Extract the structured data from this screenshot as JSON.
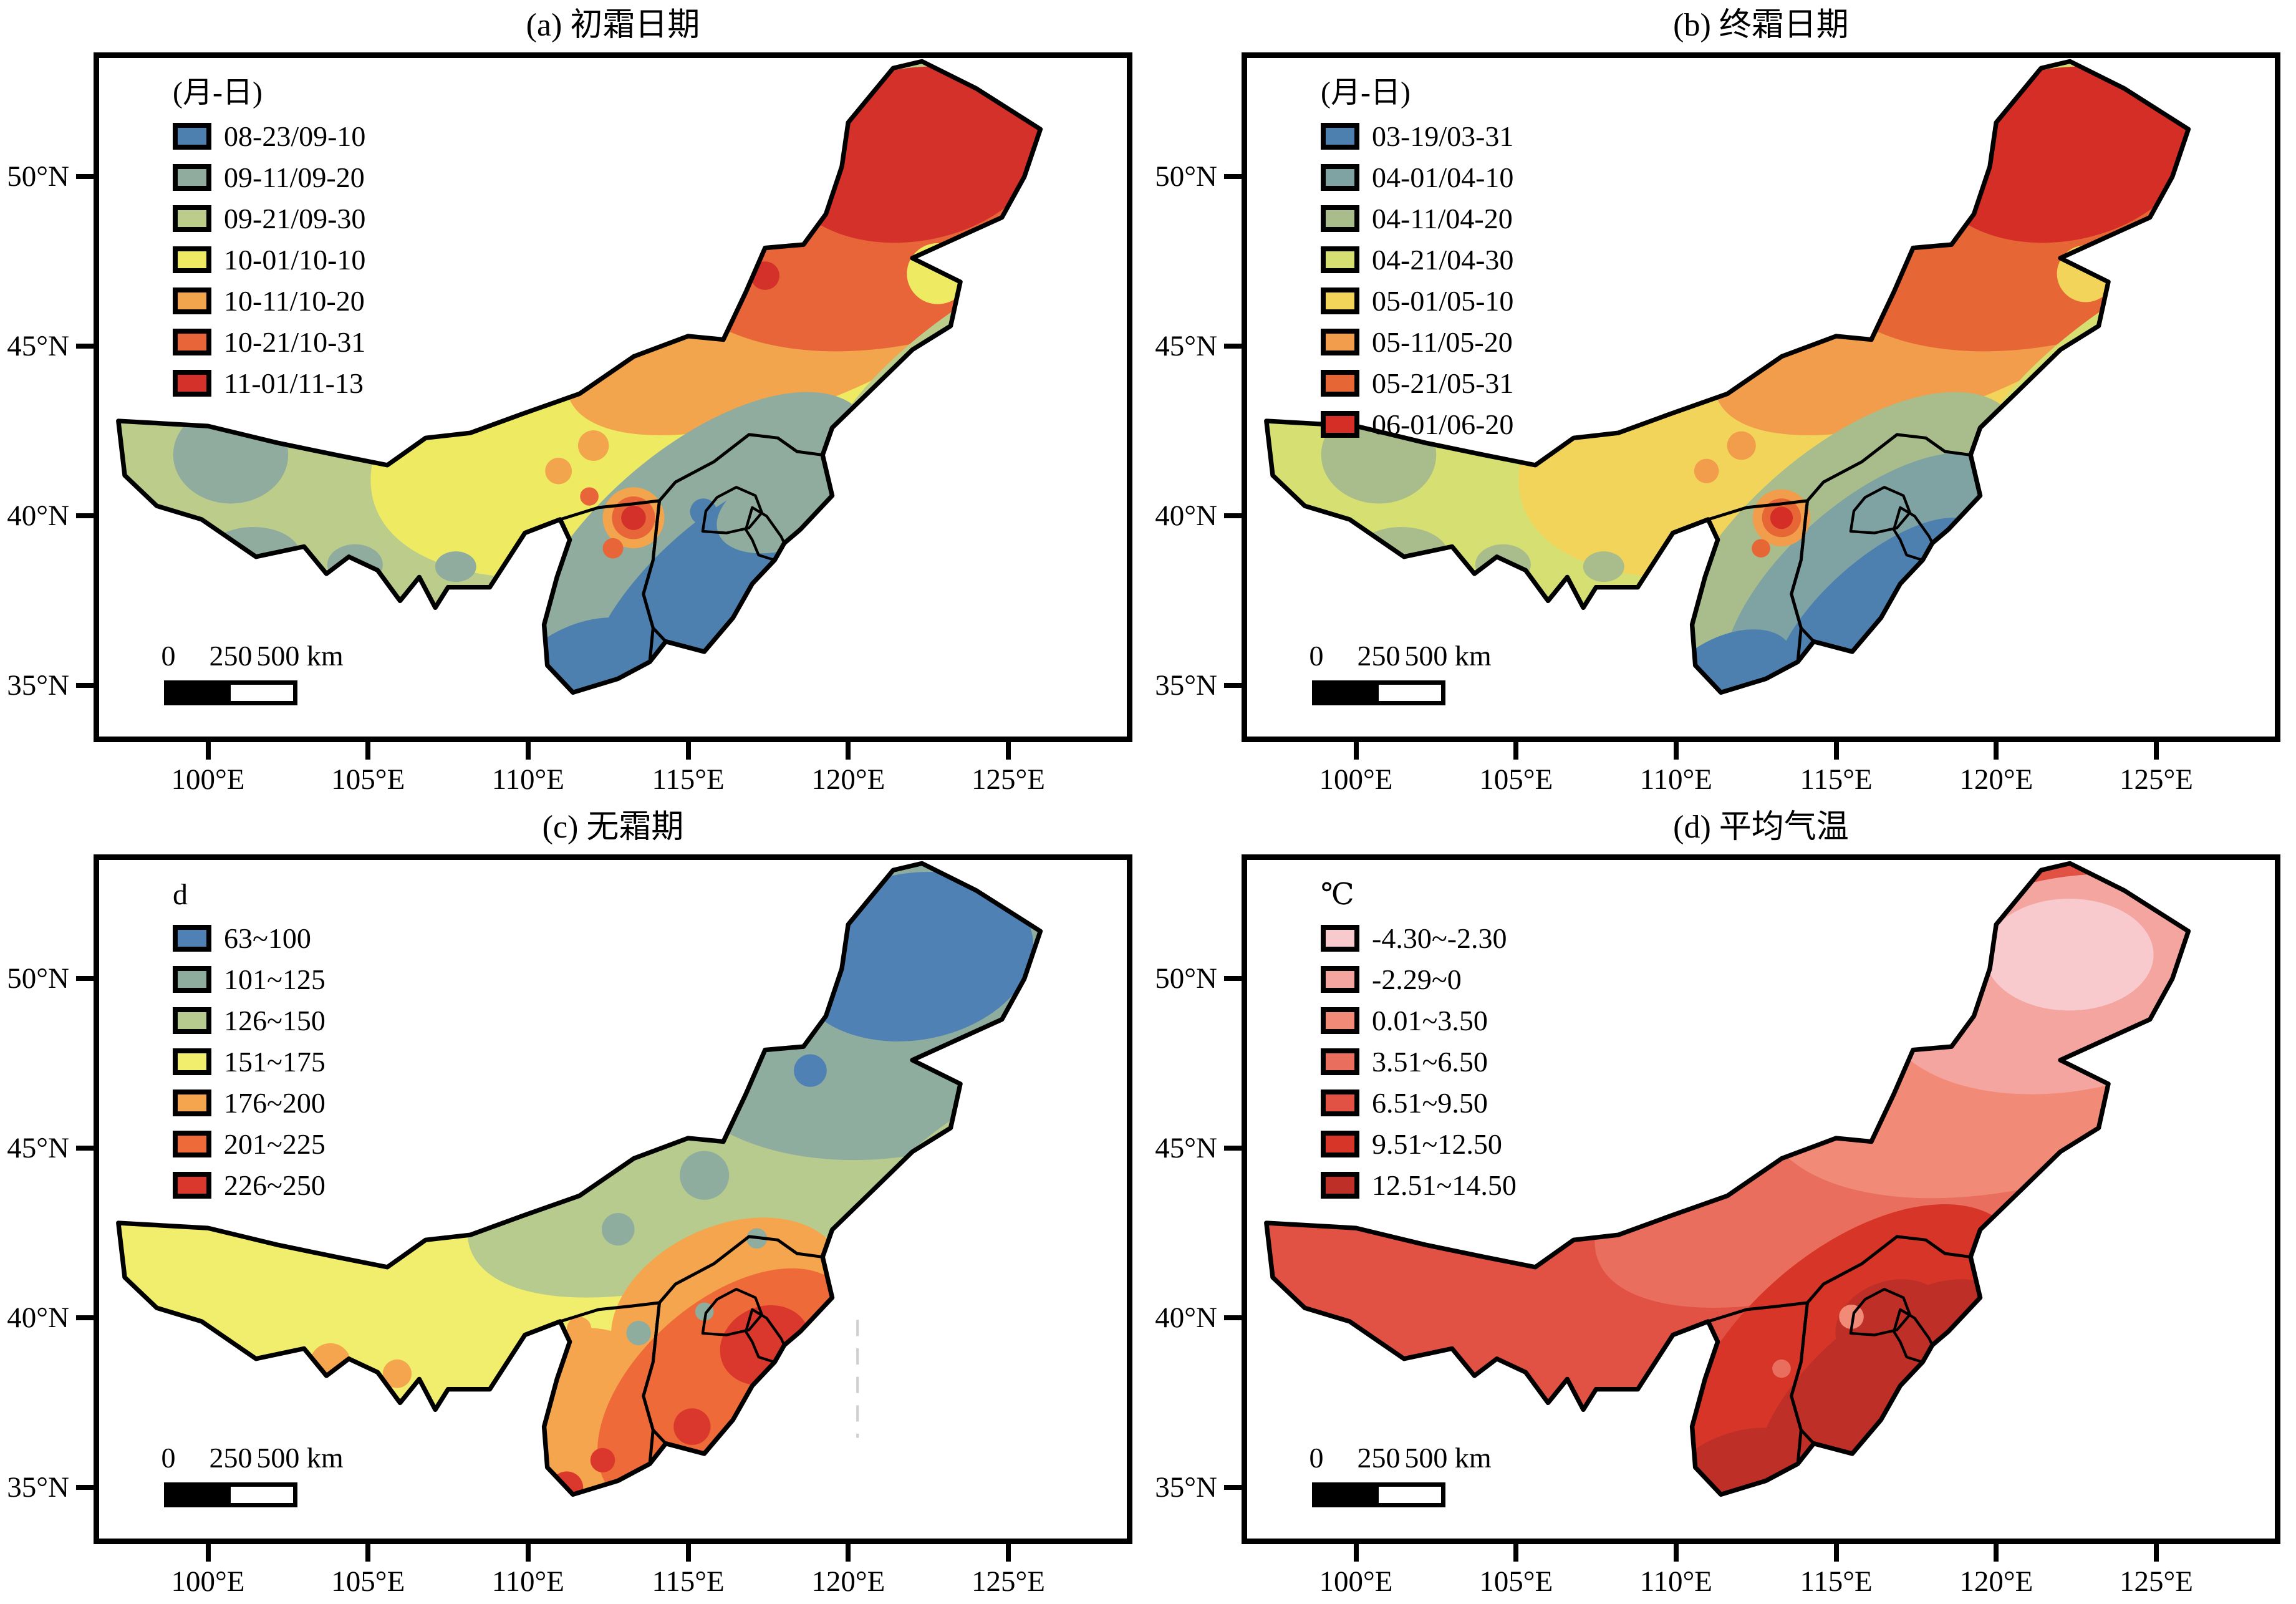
{
  "figure": {
    "kind": "four-panel frost/temperature contour maps of North China (Inner Mongolia, Shanxi, Hebei, Beijing, Tianjin)",
    "x_ticks": [
      "100°E",
      "105°E",
      "110°E",
      "115°E",
      "120°E",
      "125°E"
    ],
    "y_ticks": [
      "50°N",
      "45°N",
      "40°N",
      "35°N"
    ],
    "scalebar": {
      "labels": [
        "0",
        "250",
        "500 km"
      ]
    },
    "panels": [
      {
        "id": "a",
        "title": "(a) 初霜日期",
        "legend_title": "(月-日)",
        "legend": [
          {
            "label": "08-23/09-10",
            "color": "#4d80ae"
          },
          {
            "label": "09-11/09-20",
            "color": "#8fac9e"
          },
          {
            "label": "09-21/09-30",
            "color": "#bccd8b"
          },
          {
            "label": "10-01/10-10",
            "color": "#eeeb62"
          },
          {
            "label": "10-11/10-20",
            "color": "#f2a54d"
          },
          {
            "label": "10-21/10-31",
            "color": "#e8653a"
          },
          {
            "label": "11-01/11-13",
            "color": "#d33129"
          }
        ]
      },
      {
        "id": "b",
        "title": "(b) 终霜日期",
        "legend_title": "(月-日)",
        "legend": [
          {
            "label": "03-19/03-31",
            "color": "#4d80ae"
          },
          {
            "label": "04-01/04-10",
            "color": "#7fa2a2"
          },
          {
            "label": "04-11/04-20",
            "color": "#a9bd8c"
          },
          {
            "label": "04-21/04-30",
            "color": "#d6df72"
          },
          {
            "label": "05-01/05-10",
            "color": "#f2d45b"
          },
          {
            "label": "05-11/05-20",
            "color": "#f29d4b"
          },
          {
            "label": "05-21/05-31",
            "color": "#e66636"
          },
          {
            "label": "06-01/06-20",
            "color": "#d42e27"
          }
        ]
      },
      {
        "id": "c",
        "title": "(c) 无霜期",
        "legend_title": "d",
        "legend": [
          {
            "label": "63~100",
            "color": "#4f81b4"
          },
          {
            "label": "101~125",
            "color": "#8fad9f"
          },
          {
            "label": "126~150",
            "color": "#b7cb8e"
          },
          {
            "label": "151~175",
            "color": "#f1ee6e"
          },
          {
            "label": "176~200",
            "color": "#f5a54e"
          },
          {
            "label": "201~225",
            "color": "#ee6a39"
          },
          {
            "label": "226~250",
            "color": "#da382c"
          }
        ]
      },
      {
        "id": "d",
        "title": "(d) 平均气温",
        "legend_title": "℃",
        "legend": [
          {
            "label": "-4.30~-2.30",
            "color": "#f8c9cd"
          },
          {
            "label": "-2.29~0",
            "color": "#f4a5a0"
          },
          {
            "label": "0.01~3.50",
            "color": "#f28a78"
          },
          {
            "label": "3.51~6.50",
            "color": "#ea6e5d"
          },
          {
            "label": "6.51~9.50",
            "color": "#e15144"
          },
          {
            "label": "9.51~12.50",
            "color": "#d63527"
          },
          {
            "label": "12.51~14.50",
            "color": "#bd2f27"
          }
        ]
      }
    ]
  }
}
